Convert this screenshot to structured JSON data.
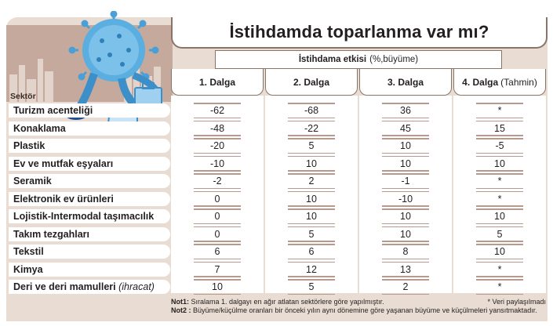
{
  "title": "İstihdamda toparlanma var mı?",
  "effect_label_bold": "İstihdama etkisi",
  "effect_label_rest": "(%,büyüme)",
  "sector_label": "Sektör",
  "columns": [
    {
      "label": "1. Dalga",
      "sub": ""
    },
    {
      "label": "2. Dalga",
      "sub": ""
    },
    {
      "label": "3. Dalga",
      "sub": ""
    },
    {
      "label": "4. Dalga",
      "sub": "(Tahmin)"
    }
  ],
  "rows": [
    {
      "name": "Turizm acenteliği",
      "note": "",
      "values": [
        "-62",
        "-68",
        "36",
        "*"
      ]
    },
    {
      "name": "Konaklama",
      "note": "",
      "values": [
        "-48",
        "-22",
        "45",
        "15"
      ]
    },
    {
      "name": "Plastik",
      "note": "",
      "values": [
        "-20",
        "5",
        "10",
        "-5"
      ]
    },
    {
      "name": "Ev ve mutfak eşyaları",
      "note": "",
      "values": [
        "-10",
        "10",
        "10",
        "10"
      ]
    },
    {
      "name": "Seramik",
      "note": "",
      "values": [
        "-2",
        "2",
        "-1",
        "*"
      ]
    },
    {
      "name": "Elektronik ev ürünleri",
      "note": "",
      "values": [
        "0",
        "10",
        "-10",
        "*"
      ]
    },
    {
      "name": "Lojistik-Intermodal taşımacılık",
      "note": "",
      "values": [
        "0",
        "10",
        "10",
        "10"
      ]
    },
    {
      "name": "Takım tezgahları",
      "note": "",
      "values": [
        "0",
        "5",
        "10",
        "5"
      ]
    },
    {
      "name": "Tekstil",
      "note": "",
      "values": [
        "6",
        "6",
        "8",
        "10"
      ]
    },
    {
      "name": "Kimya",
      "note": "",
      "values": [
        "7",
        "12",
        "13",
        "*"
      ]
    },
    {
      "name": "Deri ve deri mamulleri",
      "note": "(ihracat)",
      "values": [
        "10",
        "5",
        "2",
        "*"
      ]
    }
  ],
  "notes": {
    "not1_label": "Not1:",
    "not1_text": "Sıralama 1. dalgayı en ağır atlatan sektörlere göre yapılmıştır.",
    "not2_label": "Not2 :",
    "not2_text": "Büyüme/küçülme oranları bir önceki yılın aynı dönemine göre yaşanan büyüme ve küçülmeleri yansıtmaktadır.",
    "asterisk_note": "* Veri paylaşılmadı"
  },
  "colors": {
    "panel": "#e9ddd3",
    "header_panel": "#c5a99c",
    "line": "#b79a8d",
    "virus": "#4a9fd6"
  }
}
